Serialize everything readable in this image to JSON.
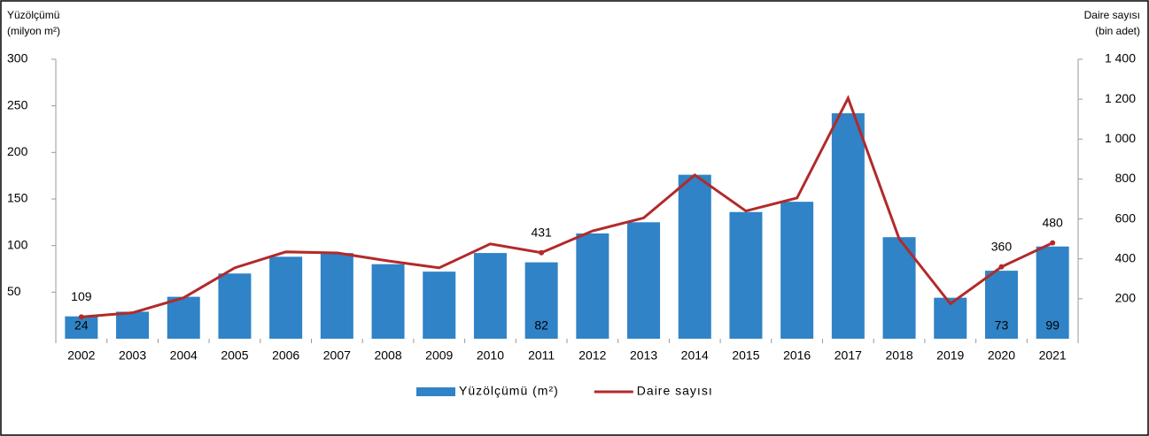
{
  "chart_data": {
    "type": "bar_line",
    "y_label": [
      "Yüzölçümü",
      "(milyon m²)"
    ],
    "y2_label": [
      "Daire sayısı",
      "(bin adet)"
    ],
    "categories": [
      "2002",
      "2003",
      "2004",
      "2005",
      "2006",
      "2007",
      "2008",
      "2009",
      "2010",
      "2011",
      "2012",
      "2013",
      "2014",
      "2015",
      "2016",
      "2017",
      "2018",
      "2019",
      "2020",
      "2021"
    ],
    "series": [
      {
        "name": "Yüzölçümü (m²)",
        "type": "bar",
        "color": "#2f83c6",
        "values": [
          24,
          29,
          45,
          70,
          88,
          92,
          80,
          72,
          92,
          82,
          113,
          125,
          176,
          136,
          147,
          242,
          109,
          44,
          73,
          99
        ],
        "value_labels": [
          "24",
          null,
          null,
          null,
          null,
          null,
          null,
          null,
          null,
          "82",
          null,
          null,
          null,
          null,
          null,
          null,
          null,
          null,
          "73",
          "99"
        ]
      },
      {
        "name": "Daire sayısı",
        "type": "line",
        "axis": "y2",
        "color": "#b22a2a",
        "values": [
          109,
          130,
          205,
          355,
          435,
          430,
          390,
          355,
          475,
          431,
          540,
          605,
          820,
          640,
          705,
          1205,
          500,
          175,
          360,
          480
        ],
        "value_labels": [
          "109",
          null,
          null,
          null,
          null,
          null,
          null,
          null,
          null,
          "431",
          null,
          null,
          null,
          null,
          null,
          null,
          null,
          null,
          "360",
          "480"
        ]
      }
    ],
    "ylim": [
      0,
      300
    ],
    "yticks": [
      50,
      100,
      150,
      200,
      250,
      300
    ],
    "y2lim": [
      0,
      1400
    ],
    "y2ticks": [
      200,
      400,
      600,
      800,
      {
        "value": 1000,
        "label": "1 000"
      },
      {
        "value": 1200,
        "label": "1 200"
      },
      {
        "value": 1400,
        "label": "1 400"
      }
    ],
    "legend": "bottom"
  }
}
